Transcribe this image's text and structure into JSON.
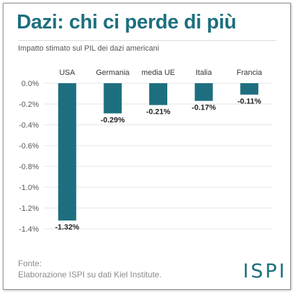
{
  "header": {
    "title": "Dazi: chi ci perde di più",
    "subtitle": "Impatto stimato sul PIL dei dazi americani"
  },
  "footer": {
    "source_label": "Fonte:",
    "source_text": "Elaborazione ISPI su dati Kiel Institute.",
    "logo_text": "ISPI"
  },
  "colors": {
    "bar": "#1d6f7f",
    "title": "#1d6f7f",
    "grid": "#e3e3e3",
    "text": "#333333"
  },
  "chart_data": {
    "type": "bar",
    "title": "Dazi: chi ci perde di più",
    "subtitle": "Impatto stimato sul PIL dei dazi americani",
    "categories": [
      "USA",
      "Germania",
      "media UE",
      "Italia",
      "Francia"
    ],
    "values": [
      -1.32,
      -0.29,
      -0.21,
      -0.17,
      -0.11
    ],
    "value_labels": [
      "-1.32%",
      "-0.29%",
      "-0.21%",
      "-0.17%",
      "-0.11%"
    ],
    "y_ticks": [
      0.0,
      -0.2,
      -0.4,
      -0.6,
      -0.8,
      -1.0,
      -1.2,
      -1.4
    ],
    "y_tick_labels": [
      "0.0%",
      "-0.2%",
      "-0.4%",
      "-0.6%",
      "-0.8%",
      "-1.0%",
      "-1.2%",
      "-1.4%"
    ],
    "ylim": [
      -1.4,
      0.0
    ],
    "category_labels_position": "top",
    "grid": true,
    "xlabel": "",
    "ylabel": ""
  }
}
